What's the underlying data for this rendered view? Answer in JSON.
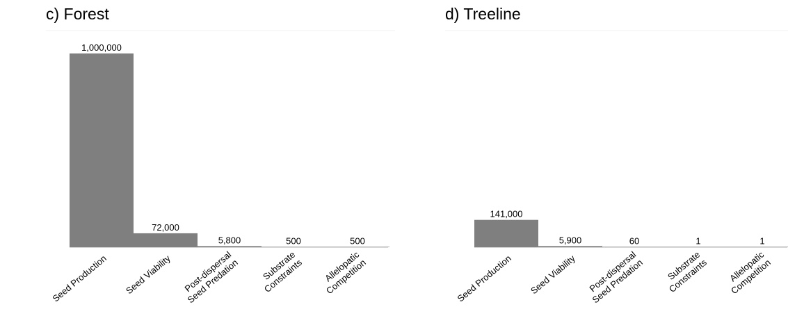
{
  "chart_data": [
    {
      "type": "bar",
      "title": "c) Forest",
      "categories": [
        "Seed Production",
        "Seed Viability",
        "Post-dispersal Seed Predation",
        "Substrate Constraints",
        "Allelopatic Competition"
      ],
      "category_lines": [
        [
          "Seed Production"
        ],
        [
          "Seed Viability"
        ],
        [
          "Post-dispersal",
          "Seed Predation"
        ],
        [
          "Substrate",
          "Constraints"
        ],
        [
          "Allelopatic",
          "Competition"
        ]
      ],
      "values": [
        1000000,
        72000,
        5800,
        500,
        500
      ],
      "value_labels": [
        "1,000,000",
        "72,000",
        "5,800",
        "500",
        "500"
      ],
      "ylim": [
        0,
        1000000
      ],
      "xlabel": "",
      "ylabel": "",
      "grid": false,
      "bar_color": "#7f7f7f"
    },
    {
      "type": "bar",
      "title": "d) Treeline",
      "categories": [
        "Seed Production",
        "Seed Viability",
        "Post-dispersal Seed Predation",
        "Substrate Constraints",
        "Allelopatic Competition"
      ],
      "category_lines": [
        [
          "Seed Production"
        ],
        [
          "Seed Viability"
        ],
        [
          "Post-dispersal",
          "Seed Predation"
        ],
        [
          "Substrate",
          "Constraints"
        ],
        [
          "Allelopatic",
          "Competition"
        ]
      ],
      "values": [
        141000,
        5900,
        60,
        1,
        1
      ],
      "value_labels": [
        "141,000",
        "5,900",
        "60",
        "1",
        "1"
      ],
      "ylim": [
        0,
        1000000
      ],
      "xlabel": "",
      "ylabel": "",
      "grid": false,
      "bar_color": "#7f7f7f"
    }
  ]
}
